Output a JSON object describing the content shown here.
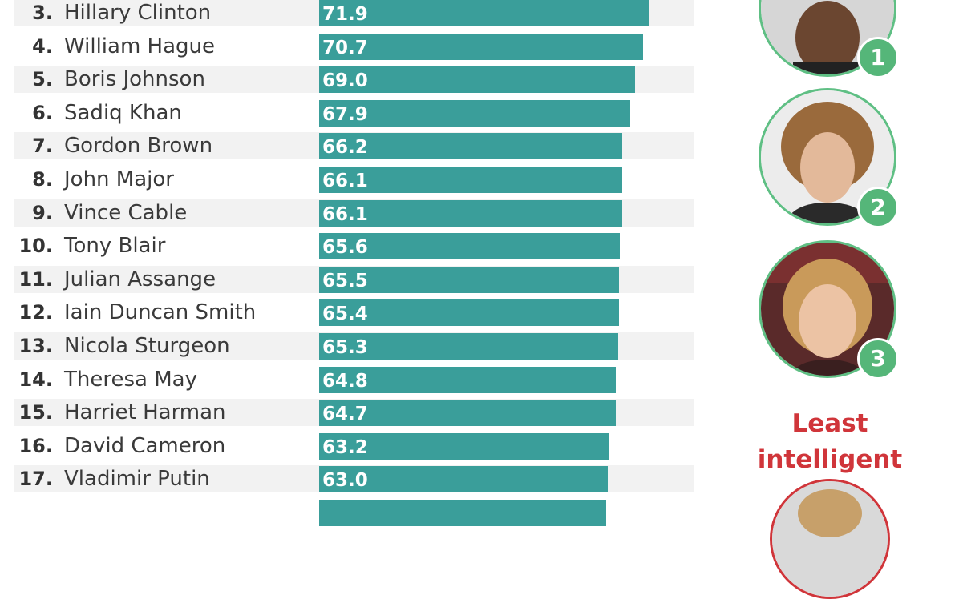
{
  "chart_data": {
    "type": "bar",
    "orientation": "horizontal",
    "categories": [
      "Hillary Clinton",
      "William Hague",
      "Boris Johnson",
      "Sadiq Khan",
      "Gordon Brown",
      "John Major",
      "Vince Cable",
      "Tony Blair",
      "Julian Assange",
      "Iain Duncan Smith",
      "Nicola Sturgeon",
      "Theresa May",
      "Harriet Harman",
      "David Cameron",
      "Vladimir Putin",
      ""
    ],
    "ranks": [
      "3.",
      "4.",
      "5.",
      "6.",
      "7.",
      "8.",
      "9.",
      "10.",
      "11.",
      "12.",
      "13.",
      "14.",
      "15.",
      "16.",
      "17.",
      ""
    ],
    "values": [
      71.9,
      70.7,
      69.0,
      67.9,
      66.2,
      66.1,
      66.1,
      65.6,
      65.5,
      65.4,
      65.3,
      64.8,
      64.7,
      63.2,
      63.0,
      62.6
    ],
    "value_labels": [
      "71.9",
      "70.7",
      "69.0",
      "67.9",
      "66.2",
      "66.1",
      "66.1",
      "65.6",
      "65.5",
      "65.4",
      "65.3",
      "64.8",
      "64.7",
      "63.2",
      "63.0",
      ""
    ],
    "bar_color": "#3a9e9a"
  },
  "top_ranked": [
    {
      "rank": "1",
      "person": "portrait-1"
    },
    {
      "rank": "2",
      "person": "portrait-2"
    },
    {
      "rank": "3",
      "person": "portrait-3"
    }
  ],
  "least_heading": {
    "line1": "Least",
    "line2": "intelligent",
    "color": "#d0353a"
  },
  "colors": {
    "badge": "#55b679",
    "ring": "#5fbf84",
    "stripe": "#f2f2f2"
  }
}
